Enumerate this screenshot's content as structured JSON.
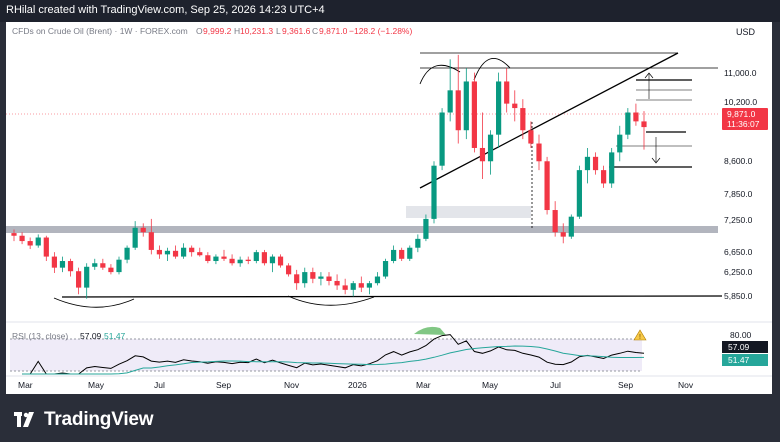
{
  "header": {
    "text": "RHilal created with TradingView.com, Sep 25, 2026 14:23 UTC+4"
  },
  "legend": {
    "symbol": "CFDs on Crude Oil (Brent) · 1W · FOREX.com",
    "o_label": "O",
    "o_value": "9,999.2",
    "h_label": "H",
    "h_value": "10,231.3",
    "l_label": "L",
    "l_value": "9,361.6",
    "c_label": "C",
    "c_value": "9,871.0",
    "change": "−128.2 (−1.28%)"
  },
  "currency": "USD",
  "price_axis": {
    "labels": [
      "11,000.0",
      "10,200.0",
      "8,600.0",
      "7,850.0",
      "7,250.0",
      "6,650.0",
      "6,250.0",
      "5,850.0"
    ],
    "last_price": "9,871.0",
    "countdown": "11:36:07"
  },
  "rsi": {
    "label": "RSI (13, close)",
    "value": "57.09",
    "ma_value": "51.47",
    "level_label": "80.00"
  },
  "time_axis": [
    "Mar",
    "May",
    "Jul",
    "Sep",
    "Nov",
    "2026",
    "Mar",
    "May",
    "Jul",
    "Sep",
    "Nov"
  ],
  "brand": {
    "name": "TradingView"
  },
  "colors": {
    "up": "#089981",
    "down": "#f23645",
    "rsi_line": "#000000",
    "rsi_ma": "#26a69a",
    "rsi_band": "#7e57c2",
    "overbought_fill": "#4caf50"
  },
  "chart_data": {
    "type": "candlestick",
    "candles": [
      {
        "o": 7480,
        "h": 7560,
        "l": 7300,
        "c": 7420
      },
      {
        "o": 7420,
        "h": 7500,
        "l": 7230,
        "c": 7300
      },
      {
        "o": 7300,
        "h": 7380,
        "l": 7120,
        "c": 7200
      },
      {
        "o": 7200,
        "h": 7450,
        "l": 7150,
        "c": 7380
      },
      {
        "o": 7380,
        "h": 7420,
        "l": 6850,
        "c": 6950
      },
      {
        "o": 6950,
        "h": 7050,
        "l": 6580,
        "c": 6700
      },
      {
        "o": 6700,
        "h": 6950,
        "l": 6600,
        "c": 6850
      },
      {
        "o": 6850,
        "h": 6900,
        "l": 6500,
        "c": 6620
      },
      {
        "o": 6620,
        "h": 6700,
        "l": 6100,
        "c": 6250
      },
      {
        "o": 6250,
        "h": 6800,
        "l": 6000,
        "c": 6720
      },
      {
        "o": 6720,
        "h": 6900,
        "l": 6650,
        "c": 6800
      },
      {
        "o": 6800,
        "h": 6900,
        "l": 6650,
        "c": 6700
      },
      {
        "o": 6700,
        "h": 6780,
        "l": 6550,
        "c": 6600
      },
      {
        "o": 6600,
        "h": 6950,
        "l": 6550,
        "c": 6880
      },
      {
        "o": 6880,
        "h": 7200,
        "l": 6800,
        "c": 7150
      },
      {
        "o": 7150,
        "h": 7750,
        "l": 7100,
        "c": 7600
      },
      {
        "o": 7600,
        "h": 7700,
        "l": 7400,
        "c": 7500
      },
      {
        "o": 7500,
        "h": 7800,
        "l": 7000,
        "c": 7100
      },
      {
        "o": 7100,
        "h": 7200,
        "l": 6900,
        "c": 7000
      },
      {
        "o": 7000,
        "h": 7150,
        "l": 6850,
        "c": 7080
      },
      {
        "o": 7080,
        "h": 7200,
        "l": 6900,
        "c": 6950
      },
      {
        "o": 6950,
        "h": 7250,
        "l": 6900,
        "c": 7150
      },
      {
        "o": 7150,
        "h": 7200,
        "l": 6950,
        "c": 7050
      },
      {
        "o": 7050,
        "h": 7150,
        "l": 6950,
        "c": 6980
      },
      {
        "o": 6980,
        "h": 7050,
        "l": 6800,
        "c": 6850
      },
      {
        "o": 6850,
        "h": 7000,
        "l": 6780,
        "c": 6950
      },
      {
        "o": 6950,
        "h": 7100,
        "l": 6850,
        "c": 6900
      },
      {
        "o": 6900,
        "h": 7000,
        "l": 6750,
        "c": 6800
      },
      {
        "o": 6800,
        "h": 6950,
        "l": 6720,
        "c": 6880
      },
      {
        "o": 6880,
        "h": 6950,
        "l": 6780,
        "c": 6850
      },
      {
        "o": 6850,
        "h": 7100,
        "l": 6800,
        "c": 7050
      },
      {
        "o": 7050,
        "h": 7100,
        "l": 6750,
        "c": 6800
      },
      {
        "o": 6800,
        "h": 7000,
        "l": 6600,
        "c": 6950
      },
      {
        "o": 6950,
        "h": 7000,
        "l": 6700,
        "c": 6750
      },
      {
        "o": 6750,
        "h": 6800,
        "l": 6500,
        "c": 6550
      },
      {
        "o": 6550,
        "h": 6650,
        "l": 6200,
        "c": 6350
      },
      {
        "o": 6350,
        "h": 6700,
        "l": 6250,
        "c": 6600
      },
      {
        "o": 6600,
        "h": 6700,
        "l": 6350,
        "c": 6450
      },
      {
        "o": 6450,
        "h": 6600,
        "l": 6300,
        "c": 6500
      },
      {
        "o": 6500,
        "h": 6600,
        "l": 6300,
        "c": 6400
      },
      {
        "o": 6400,
        "h": 6550,
        "l": 6200,
        "c": 6300
      },
      {
        "o": 6300,
        "h": 6450,
        "l": 6100,
        "c": 6200
      },
      {
        "o": 6200,
        "h": 6400,
        "l": 6050,
        "c": 6350
      },
      {
        "o": 6350,
        "h": 6500,
        "l": 6150,
        "c": 6250
      },
      {
        "o": 6250,
        "h": 6400,
        "l": 6100,
        "c": 6350
      },
      {
        "o": 6350,
        "h": 6600,
        "l": 6300,
        "c": 6500
      },
      {
        "o": 6500,
        "h": 6900,
        "l": 6450,
        "c": 6850
      },
      {
        "o": 6850,
        "h": 7200,
        "l": 6800,
        "c": 7100
      },
      {
        "o": 7100,
        "h": 7150,
        "l": 6850,
        "c": 6900
      },
      {
        "o": 6900,
        "h": 7200,
        "l": 6850,
        "c": 7150
      },
      {
        "o": 7150,
        "h": 7450,
        "l": 7050,
        "c": 7350
      },
      {
        "o": 7350,
        "h": 7900,
        "l": 7300,
        "c": 7800
      },
      {
        "o": 7800,
        "h": 9100,
        "l": 7700,
        "c": 9000
      },
      {
        "o": 9000,
        "h": 10300,
        "l": 8900,
        "c": 10200
      },
      {
        "o": 10200,
        "h": 11400,
        "l": 10000,
        "c": 10700
      },
      {
        "o": 10700,
        "h": 11500,
        "l": 9500,
        "c": 9800
      },
      {
        "o": 9800,
        "h": 11200,
        "l": 9600,
        "c": 10900
      },
      {
        "o": 10900,
        "h": 11100,
        "l": 9300,
        "c": 9400
      },
      {
        "o": 9400,
        "h": 10200,
        "l": 8700,
        "c": 9100
      },
      {
        "o": 9100,
        "h": 9800,
        "l": 8800,
        "c": 9700
      },
      {
        "o": 9700,
        "h": 11100,
        "l": 9400,
        "c": 10900
      },
      {
        "o": 10900,
        "h": 11200,
        "l": 10200,
        "c": 10400
      },
      {
        "o": 10400,
        "h": 10700,
        "l": 10000,
        "c": 10300
      },
      {
        "o": 10300,
        "h": 10500,
        "l": 9600,
        "c": 9800
      },
      {
        "o": 9800,
        "h": 10000,
        "l": 9400,
        "c": 9500
      },
      {
        "o": 9500,
        "h": 9700,
        "l": 8900,
        "c": 9100
      },
      {
        "o": 9100,
        "h": 9200,
        "l": 7900,
        "c": 8000
      },
      {
        "o": 8000,
        "h": 8200,
        "l": 7400,
        "c": 7500
      },
      {
        "o": 7500,
        "h": 7700,
        "l": 7250,
        "c": 7400
      },
      {
        "o": 7400,
        "h": 7900,
        "l": 7350,
        "c": 7850
      },
      {
        "o": 7850,
        "h": 9000,
        "l": 7800,
        "c": 8900
      },
      {
        "o": 8900,
        "h": 9400,
        "l": 8600,
        "c": 9200
      },
      {
        "o": 9200,
        "h": 9300,
        "l": 8800,
        "c": 8900
      },
      {
        "o": 8900,
        "h": 9000,
        "l": 8500,
        "c": 8600
      },
      {
        "o": 8600,
        "h": 9400,
        "l": 8500,
        "c": 9300
      },
      {
        "o": 9300,
        "h": 9900,
        "l": 9100,
        "c": 9700
      },
      {
        "o": 9700,
        "h": 10300,
        "l": 9600,
        "c": 10200
      },
      {
        "o": 10200,
        "h": 10400,
        "l": 9900,
        "c": 10000
      },
      {
        "o": 9999.2,
        "h": 10231.3,
        "l": 9361.6,
        "c": 9871
      }
    ],
    "y_range": [
      5700,
      11700
    ]
  }
}
